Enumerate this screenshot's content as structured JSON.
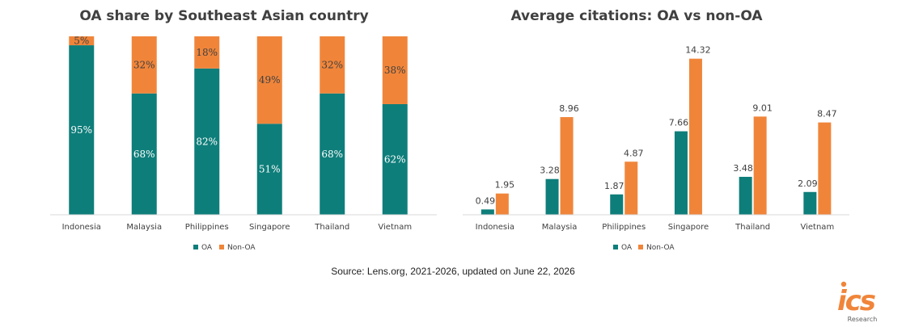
{
  "colors": {
    "oa": "#0e7e7a",
    "non_oa": "#f0853a",
    "axis": "#d9d9d9",
    "text": "#404040"
  },
  "chart_data": [
    {
      "type": "bar",
      "stacked": true,
      "title": "OA share by Southeast Asian country",
      "categories": [
        "Indonesia",
        "Malaysia",
        "Philippines",
        "Singapore",
        "Thailand",
        "Vietnam"
      ],
      "series": [
        {
          "name": "OA",
          "values": [
            95,
            68,
            82,
            51,
            68,
            62
          ],
          "labels": [
            "95%",
            "68%",
            "82%",
            "51%",
            "68%",
            "62%"
          ]
        },
        {
          "name": "Non-OA",
          "values": [
            5,
            32,
            18,
            49,
            32,
            38
          ],
          "labels": [
            "5%",
            "32%",
            "18%",
            "49%",
            "32%",
            "38%"
          ]
        }
      ],
      "ylim": [
        0,
        100
      ],
      "legend": "bottom"
    },
    {
      "type": "bar",
      "title": "Average citations: OA vs non-OA",
      "categories": [
        "Indonesia",
        "Malaysia",
        "Philippines",
        "Singapore",
        "Thailand",
        "Vietnam"
      ],
      "series": [
        {
          "name": "OA",
          "values": [
            0.49,
            3.28,
            1.87,
            7.66,
            3.48,
            2.09
          ],
          "labels": [
            "0.49",
            "3.28",
            "1.87",
            "7.66",
            "3.48",
            "2.09"
          ]
        },
        {
          "name": "Non-OA",
          "values": [
            1.95,
            8.96,
            4.87,
            14.32,
            9.01,
            8.47
          ],
          "labels": [
            "1.95",
            "8.96",
            "4.87",
            "14.32",
            "9.01",
            "8.47"
          ]
        }
      ],
      "ylim": [
        0,
        16
      ],
      "legend": "bottom"
    }
  ],
  "source": "Source: Lens.org, 2021-2026, updated on June 22, 2026",
  "logo": {
    "letters": "ics",
    "subtitle": "Research"
  }
}
